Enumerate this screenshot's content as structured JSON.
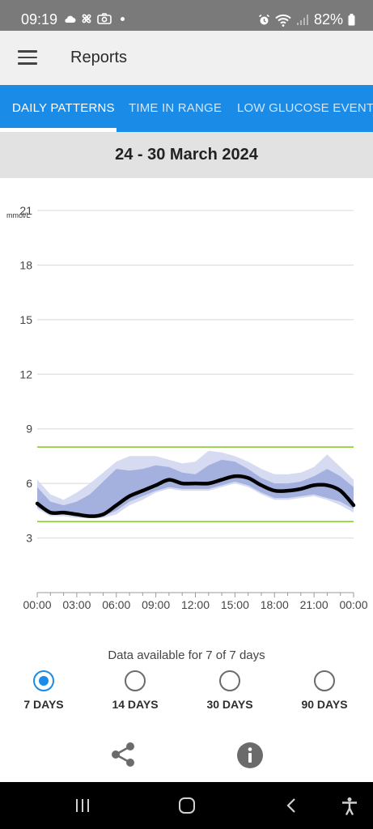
{
  "status_bar": {
    "time": "09:19",
    "battery": "82%",
    "icons_left": [
      "cloud-icon",
      "fan-icon",
      "camera-icon",
      "dot"
    ],
    "icons_right": [
      "alarm-icon",
      "wifi-icon",
      "signal-icon",
      "battery-icon"
    ]
  },
  "app_bar": {
    "title": "Reports",
    "menu_icon": "hamburger-icon"
  },
  "tabs": [
    {
      "label": "DAILY PATTERNS",
      "active": true
    },
    {
      "label": "TIME IN RANGE",
      "active": false
    },
    {
      "label": "LOW GLUCOSE EVENTS",
      "active": false
    }
  ],
  "date_range": "24 - 30 March 2024",
  "chart_data": {
    "type": "area",
    "ylabel": "mmol/L",
    "yticks": [
      3,
      6,
      9,
      12,
      15,
      18,
      21
    ],
    "ylim": [
      0,
      21
    ],
    "xticks": [
      "00:00",
      "03:00",
      "06:00",
      "09:00",
      "12:00",
      "15:00",
      "18:00",
      "21:00",
      "00:00"
    ],
    "xlim": [
      0,
      24
    ],
    "target_range": {
      "low": 3.9,
      "high": 8.0,
      "color": "#8dc63f"
    },
    "grid": true,
    "x": [
      0,
      1,
      2,
      3,
      4,
      5,
      6,
      7,
      8,
      9,
      10,
      11,
      12,
      13,
      14,
      15,
      16,
      17,
      18,
      19,
      20,
      21,
      22,
      23,
      24
    ],
    "series": [
      {
        "role": "outer-band",
        "color": "#d6dbf2",
        "low": [
          4.6,
          4.2,
          4.2,
          4.1,
          4.1,
          4.1,
          4.3,
          4.8,
          5.1,
          5.5,
          5.7,
          5.6,
          5.6,
          5.6,
          5.8,
          6.0,
          5.8,
          5.4,
          5.1,
          5.1,
          5.2,
          5.3,
          5.1,
          4.8,
          4.4
        ],
        "high": [
          6.2,
          5.4,
          5.1,
          5.5,
          6.0,
          6.6,
          7.2,
          7.5,
          7.5,
          7.5,
          7.3,
          7.1,
          7.2,
          7.8,
          7.7,
          7.5,
          7.2,
          6.8,
          6.5,
          6.5,
          6.6,
          6.9,
          7.6,
          6.9,
          6.2
        ]
      },
      {
        "role": "inner-band",
        "color": "#a4b1df",
        "low": [
          4.7,
          4.3,
          4.3,
          4.2,
          4.2,
          4.2,
          4.5,
          5.0,
          5.3,
          5.6,
          5.8,
          5.7,
          5.7,
          5.7,
          5.9,
          6.1,
          5.9,
          5.5,
          5.2,
          5.2,
          5.3,
          5.4,
          5.2,
          5.0,
          4.6
        ],
        "high": [
          5.8,
          5.0,
          4.8,
          5.0,
          5.4,
          6.1,
          6.8,
          6.7,
          6.8,
          7.0,
          6.9,
          6.6,
          6.5,
          7.0,
          7.3,
          7.2,
          6.8,
          6.3,
          6.0,
          6.0,
          6.1,
          6.4,
          6.8,
          6.4,
          5.8
        ]
      },
      {
        "name": "median",
        "color": "#000000",
        "values": [
          4.9,
          4.4,
          4.4,
          4.3,
          4.2,
          4.3,
          4.8,
          5.3,
          5.6,
          5.9,
          6.2,
          6.0,
          6.0,
          6.0,
          6.2,
          6.4,
          6.3,
          5.9,
          5.6,
          5.6,
          5.7,
          5.9,
          5.9,
          5.6,
          4.8
        ]
      }
    ]
  },
  "data_available": "Data available for 7 of 7 days",
  "range_options": [
    {
      "label": "7 DAYS",
      "selected": true
    },
    {
      "label": "14 DAYS",
      "selected": false
    },
    {
      "label": "30 DAYS",
      "selected": false
    },
    {
      "label": "90 DAYS",
      "selected": false
    }
  ],
  "actions": {
    "share_icon": "share-icon",
    "info_icon": "info-icon"
  },
  "nav_bar": {
    "buttons": [
      "recents-icon",
      "home-icon",
      "back-icon",
      "accessibility-icon"
    ]
  },
  "colors": {
    "accent": "#1a8be6",
    "tab_inactive": "#cfe6fb",
    "target_line": "#8dc63f"
  }
}
